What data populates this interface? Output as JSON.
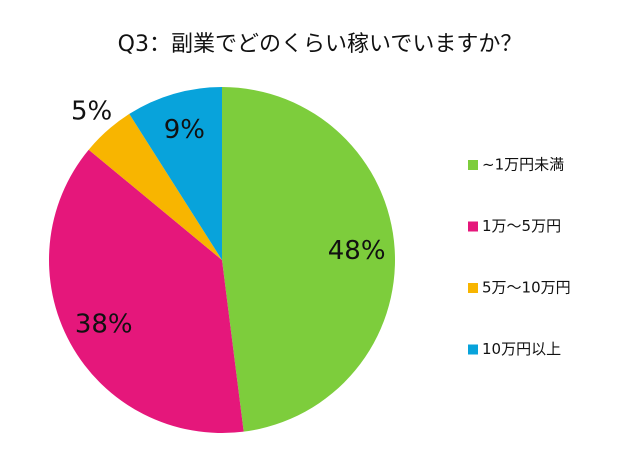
{
  "chart_data": {
    "type": "pie",
    "title": "Q3：副業でどのくらい稼いでいますか？",
    "categories": [
      "~1万円未満",
      "1万～5万円",
      "5万～10万円",
      "10万円以上"
    ],
    "values": [
      48,
      38,
      5,
      9
    ],
    "value_labels": [
      "48%",
      "38%",
      "5%",
      "9%"
    ],
    "colors": [
      "#7dcd3c",
      "#e5177b",
      "#f8b500",
      "#08a3db"
    ],
    "legend": "right"
  }
}
